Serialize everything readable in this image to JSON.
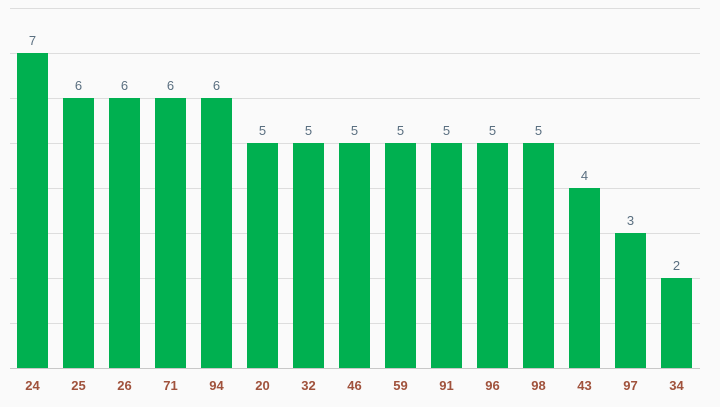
{
  "chart_data": {
    "type": "bar",
    "categories": [
      "24",
      "25",
      "26",
      "71",
      "94",
      "20",
      "32",
      "46",
      "59",
      "91",
      "96",
      "98",
      "43",
      "97",
      "34"
    ],
    "values": [
      7,
      6,
      6,
      6,
      6,
      5,
      5,
      5,
      5,
      5,
      5,
      5,
      4,
      3,
      2
    ],
    "title": "",
    "xlabel": "",
    "ylabel": "",
    "ylim": [
      0,
      8
    ],
    "grid": true,
    "data_labels": true,
    "legend": "none"
  },
  "colors": {
    "bar": "#00b050",
    "tick_label": "#a0523c",
    "data_label": "#5a6f80",
    "background": "#fafafa"
  }
}
